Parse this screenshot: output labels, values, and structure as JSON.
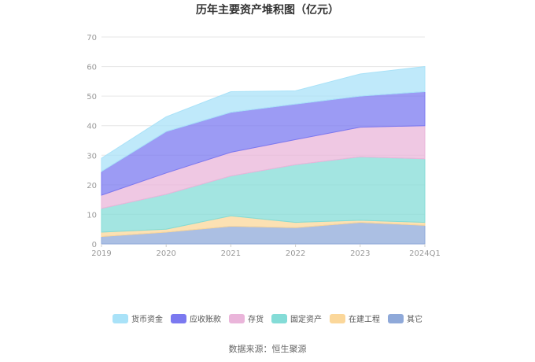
{
  "chart_data": {
    "type": "area",
    "stacked": true,
    "title": "历年主要资产堆积图（亿元）",
    "categories": [
      "2019",
      "2020",
      "2021",
      "2022",
      "2023",
      "2024Q1"
    ],
    "ylim": [
      0,
      70
    ],
    "yticks": [
      0,
      10,
      20,
      30,
      40,
      50,
      60,
      70
    ],
    "grid": true,
    "legend_position": "bottom",
    "series": [
      {
        "name": "其它",
        "color": "#8fa9d9",
        "values": [
          2.5,
          4.0,
          6.0,
          5.5,
          7.3,
          6.3
        ]
      },
      {
        "name": "在建工程",
        "color": "#fbd79a",
        "values": [
          1.5,
          1.0,
          3.5,
          1.8,
          0.7,
          1.0
        ]
      },
      {
        "name": "固定资产",
        "color": "#84dcd7",
        "values": [
          8.0,
          11.8,
          13.5,
          19.5,
          21.5,
          21.5
        ]
      },
      {
        "name": "存货",
        "color": "#eab5da",
        "values": [
          4.5,
          7.2,
          8.0,
          8.5,
          10.0,
          11.2
        ]
      },
      {
        "name": "应收账款",
        "color": "#7b79f0",
        "values": [
          8.0,
          14.0,
          13.5,
          12.0,
          10.5,
          11.5
        ]
      },
      {
        "name": "货币资金",
        "color": "#a9e2f8",
        "values": [
          4.5,
          5.0,
          7.0,
          4.5,
          7.5,
          8.5
        ]
      }
    ],
    "legend_order": [
      "货币资金",
      "应收账款",
      "存货",
      "固定资产",
      "在建工程",
      "其它"
    ]
  },
  "source_text": "数据来源：恒生聚源"
}
